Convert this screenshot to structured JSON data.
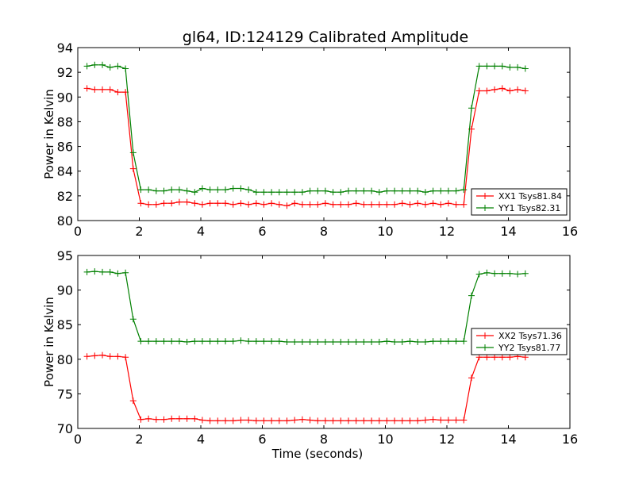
{
  "figure": {
    "title": "gl64, ID:124129 Calibrated Amplitude"
  },
  "chart_data": [
    {
      "type": "line",
      "title": "gl64, ID:124129 Calibrated Amplitude",
      "xlabel": "",
      "ylabel": "Power in Kelvin",
      "xlim": [
        0,
        16
      ],
      "ylim": [
        80,
        94
      ],
      "xticks": [
        "0",
        "2",
        "4",
        "6",
        "8",
        "10",
        "12",
        "14",
        "16"
      ],
      "yticks": [
        "80",
        "82",
        "84",
        "86",
        "88",
        "90",
        "92",
        "94"
      ],
      "grid": false,
      "legend_position": "lower-right",
      "marker": "+",
      "x": [
        0.3,
        0.55,
        0.8,
        1.05,
        1.3,
        1.55,
        1.8,
        2.05,
        2.3,
        2.55,
        2.8,
        3.05,
        3.3,
        3.55,
        3.8,
        4.05,
        4.3,
        4.55,
        4.8,
        5.05,
        5.3,
        5.55,
        5.8,
        6.05,
        6.3,
        6.55,
        6.8,
        7.05,
        7.3,
        7.55,
        7.8,
        8.05,
        8.3,
        8.55,
        8.8,
        9.05,
        9.3,
        9.55,
        9.8,
        10.05,
        10.3,
        10.55,
        10.8,
        11.05,
        11.3,
        11.55,
        11.8,
        12.05,
        12.3,
        12.55,
        12.8,
        13.05,
        13.3,
        13.55,
        13.8,
        14.05,
        14.3,
        14.55
      ],
      "series": [
        {
          "name": "XX1 Tsys81.84",
          "color": "#ff0000",
          "values": [
            90.7,
            90.6,
            90.6,
            90.6,
            90.4,
            90.4,
            84.2,
            81.4,
            81.3,
            81.3,
            81.4,
            81.4,
            81.5,
            81.5,
            81.4,
            81.3,
            81.4,
            81.4,
            81.4,
            81.3,
            81.4,
            81.3,
            81.4,
            81.3,
            81.4,
            81.3,
            81.2,
            81.4,
            81.3,
            81.3,
            81.3,
            81.4,
            81.3,
            81.3,
            81.3,
            81.4,
            81.3,
            81.3,
            81.3,
            81.3,
            81.3,
            81.4,
            81.3,
            81.4,
            81.3,
            81.4,
            81.3,
            81.4,
            81.3,
            81.3,
            87.4,
            90.5,
            90.5,
            90.6,
            90.7,
            90.5,
            90.6,
            90.5
          ]
        },
        {
          "name": "YY1 Tsys82.31",
          "color": "#008000",
          "values": [
            92.5,
            92.6,
            92.6,
            92.4,
            92.5,
            92.3,
            85.5,
            82.5,
            82.5,
            82.4,
            82.4,
            82.5,
            82.5,
            82.4,
            82.3,
            82.6,
            82.5,
            82.5,
            82.5,
            82.6,
            82.6,
            82.5,
            82.3,
            82.3,
            82.3,
            82.3,
            82.3,
            82.3,
            82.3,
            82.4,
            82.4,
            82.4,
            82.3,
            82.3,
            82.4,
            82.4,
            82.4,
            82.4,
            82.3,
            82.4,
            82.4,
            82.4,
            82.4,
            82.4,
            82.3,
            82.4,
            82.4,
            82.4,
            82.4,
            82.5,
            89.1,
            92.5,
            92.5,
            92.5,
            92.5,
            92.4,
            92.4,
            92.3
          ]
        }
      ]
    },
    {
      "type": "line",
      "title": "",
      "xlabel": "Time (seconds)",
      "ylabel": "Power in Kelvin",
      "xlim": [
        0,
        16
      ],
      "ylim": [
        70,
        95
      ],
      "xticks": [
        "0",
        "2",
        "4",
        "6",
        "8",
        "10",
        "12",
        "14",
        "16"
      ],
      "yticks": [
        "70",
        "75",
        "80",
        "85",
        "90",
        "95"
      ],
      "grid": false,
      "legend_position": "right",
      "marker": "+",
      "x": [
        0.3,
        0.55,
        0.8,
        1.05,
        1.3,
        1.55,
        1.8,
        2.05,
        2.3,
        2.55,
        2.8,
        3.05,
        3.3,
        3.55,
        3.8,
        4.05,
        4.3,
        4.55,
        4.8,
        5.05,
        5.3,
        5.55,
        5.8,
        6.05,
        6.3,
        6.55,
        6.8,
        7.05,
        7.3,
        7.55,
        7.8,
        8.05,
        8.3,
        8.55,
        8.8,
        9.05,
        9.3,
        9.55,
        9.8,
        10.05,
        10.3,
        10.55,
        10.8,
        11.05,
        11.3,
        11.55,
        11.8,
        12.05,
        12.3,
        12.55,
        12.8,
        13.05,
        13.3,
        13.55,
        13.8,
        14.05,
        14.3,
        14.55
      ],
      "series": [
        {
          "name": "XX2 Tsys71.36",
          "color": "#ff0000",
          "values": [
            80.4,
            80.5,
            80.6,
            80.4,
            80.4,
            80.3,
            74.0,
            71.3,
            71.4,
            71.3,
            71.3,
            71.4,
            71.4,
            71.4,
            71.4,
            71.2,
            71.1,
            71.1,
            71.1,
            71.1,
            71.2,
            71.2,
            71.1,
            71.1,
            71.1,
            71.1,
            71.1,
            71.2,
            71.3,
            71.2,
            71.1,
            71.1,
            71.1,
            71.1,
            71.1,
            71.1,
            71.1,
            71.1,
            71.1,
            71.1,
            71.1,
            71.1,
            71.1,
            71.1,
            71.2,
            71.3,
            71.2,
            71.2,
            71.2,
            71.2,
            77.3,
            80.3,
            80.3,
            80.3,
            80.3,
            80.3,
            80.4,
            80.3
          ]
        },
        {
          "name": "YY2 Tsys81.77",
          "color": "#008000",
          "values": [
            92.6,
            92.7,
            92.6,
            92.6,
            92.4,
            92.5,
            85.8,
            82.6,
            82.6,
            82.6,
            82.6,
            82.6,
            82.6,
            82.5,
            82.6,
            82.6,
            82.6,
            82.6,
            82.6,
            82.6,
            82.7,
            82.6,
            82.6,
            82.6,
            82.6,
            82.6,
            82.5,
            82.5,
            82.5,
            82.5,
            82.5,
            82.5,
            82.5,
            82.5,
            82.5,
            82.5,
            82.5,
            82.5,
            82.5,
            82.6,
            82.5,
            82.5,
            82.6,
            82.5,
            82.5,
            82.6,
            82.6,
            82.6,
            82.6,
            82.6,
            89.2,
            92.3,
            92.5,
            92.4,
            92.4,
            92.4,
            92.3,
            92.4
          ]
        }
      ]
    }
  ]
}
